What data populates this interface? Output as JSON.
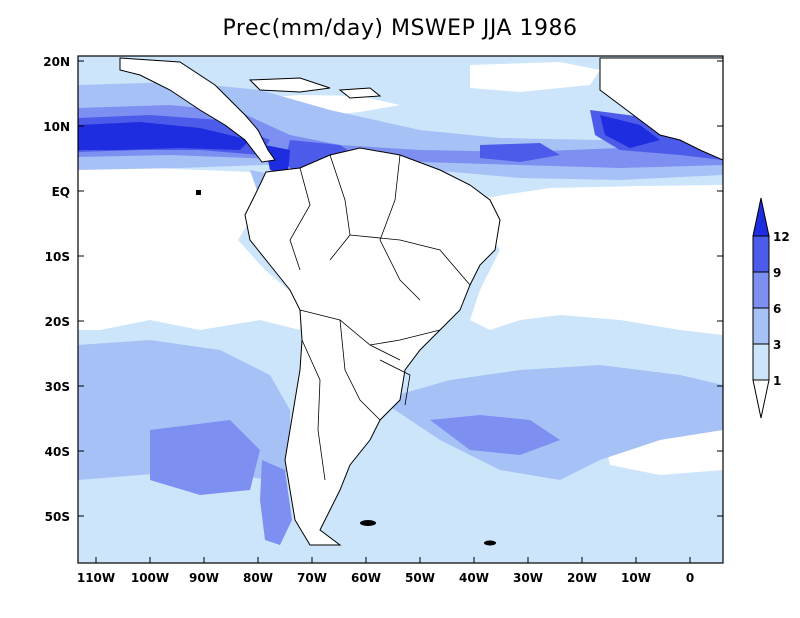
{
  "title": "Prec(mm/day) MSWEP JJA 1986",
  "colors": {
    "lt1": "#ffffff",
    "1to3": "#cce5fb",
    "3to6": "#a6c1f6",
    "6to9": "#7d8ff0",
    "9to12": "#4d5bea",
    "gt12": "#1e2de0",
    "land": "#ffffff"
  },
  "lat_labels": [
    "20N",
    "10N",
    "EQ",
    "10S",
    "20S",
    "30S",
    "40S",
    "50S"
  ],
  "lon_labels": [
    "110W",
    "100W",
    "90W",
    "80W",
    "70W",
    "60W",
    "50W",
    "40W",
    "30W",
    "20W",
    "10W",
    "0"
  ],
  "colorbar": {
    "levels": [
      "1",
      "3",
      "6",
      "9",
      "12"
    ]
  },
  "icons": {
    "colorbar": "colorbar-arrow-icon"
  }
}
